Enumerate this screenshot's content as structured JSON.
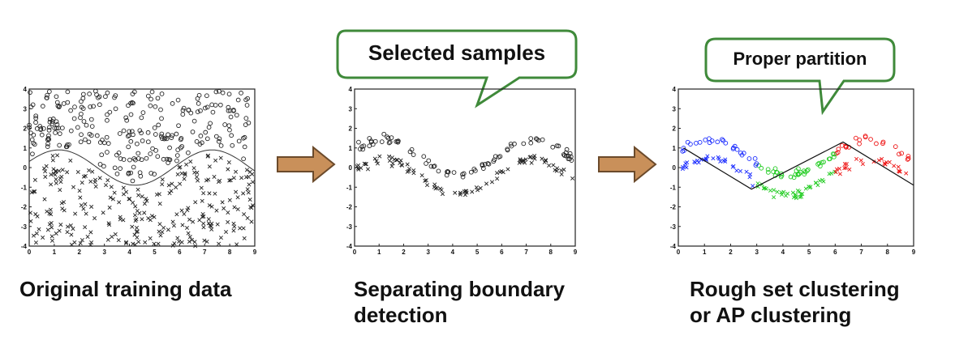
{
  "captions": {
    "original": "Original training data",
    "boundary_line1": "Separating boundary",
    "boundary_line2": "detection",
    "clustering_line1": "Rough set clustering",
    "clustering_line2": "or AP clustering"
  },
  "callouts": {
    "selected": "Selected samples",
    "partition": "Proper partition"
  },
  "colors": {
    "arrow_fill": "#c9905a",
    "arrow_stroke": "#6b4a2b",
    "callout_border": "#3f8a3a",
    "cluster_1": "#1a2bff",
    "cluster_2": "#22cc22",
    "cluster_3": "#ee1111",
    "marker": "#222222"
  },
  "chart_data": [
    {
      "type": "scatter",
      "xlim": [
        0,
        9
      ],
      "ylim": [
        -4,
        4
      ],
      "xticks": [
        0,
        1,
        2,
        3,
        4,
        5,
        6,
        7,
        8,
        9
      ],
      "yticks": [
        -4,
        -3,
        -2,
        -1,
        0,
        1,
        2,
        3,
        4
      ],
      "series": [
        {
          "marker": "circle",
          "color": "#222222",
          "points": "upper class (o), scattered above sine boundary"
        },
        {
          "marker": "cross",
          "color": "#222222",
          "points": "lower class (x), scattered below sine boundary"
        }
      ],
      "boundary": "sinusoid"
    },
    {
      "type": "scatter",
      "xlim": [
        0,
        9
      ],
      "ylim": [
        -4,
        4
      ],
      "xticks": [
        0,
        1,
        2,
        3,
        4,
        5,
        6,
        7,
        8,
        9
      ],
      "yticks": [
        -4,
        -3,
        -2,
        -1,
        0,
        1,
        2,
        3,
        4
      ],
      "series": [
        {
          "marker": "circle",
          "color": "#222222",
          "points": "selected samples near boundary (o)"
        },
        {
          "marker": "cross",
          "color": "#222222",
          "points": "selected samples near boundary (x)"
        }
      ]
    },
    {
      "type": "scatter",
      "xlim": [
        0,
        9
      ],
      "ylim": [
        -4,
        4
      ],
      "xticks": [
        0,
        1,
        2,
        3,
        4,
        5,
        6,
        7,
        8,
        9
      ],
      "yticks": [
        -4,
        -3,
        -2,
        -1,
        0,
        1,
        2,
        3,
        4
      ],
      "series": [
        {
          "marker": "mixed",
          "color": "#1a2bff",
          "points": "cluster x 0–3"
        },
        {
          "marker": "mixed",
          "color": "#22cc22",
          "points": "cluster x 3–6"
        },
        {
          "marker": "mixed",
          "color": "#ee1111",
          "points": "cluster x 6–9"
        }
      ],
      "partition_line": [
        [
          0.2,
          1.0
        ],
        [
          2.8,
          -1.1
        ],
        [
          6.3,
          1.3
        ],
        [
          9,
          -0.9
        ]
      ]
    }
  ]
}
